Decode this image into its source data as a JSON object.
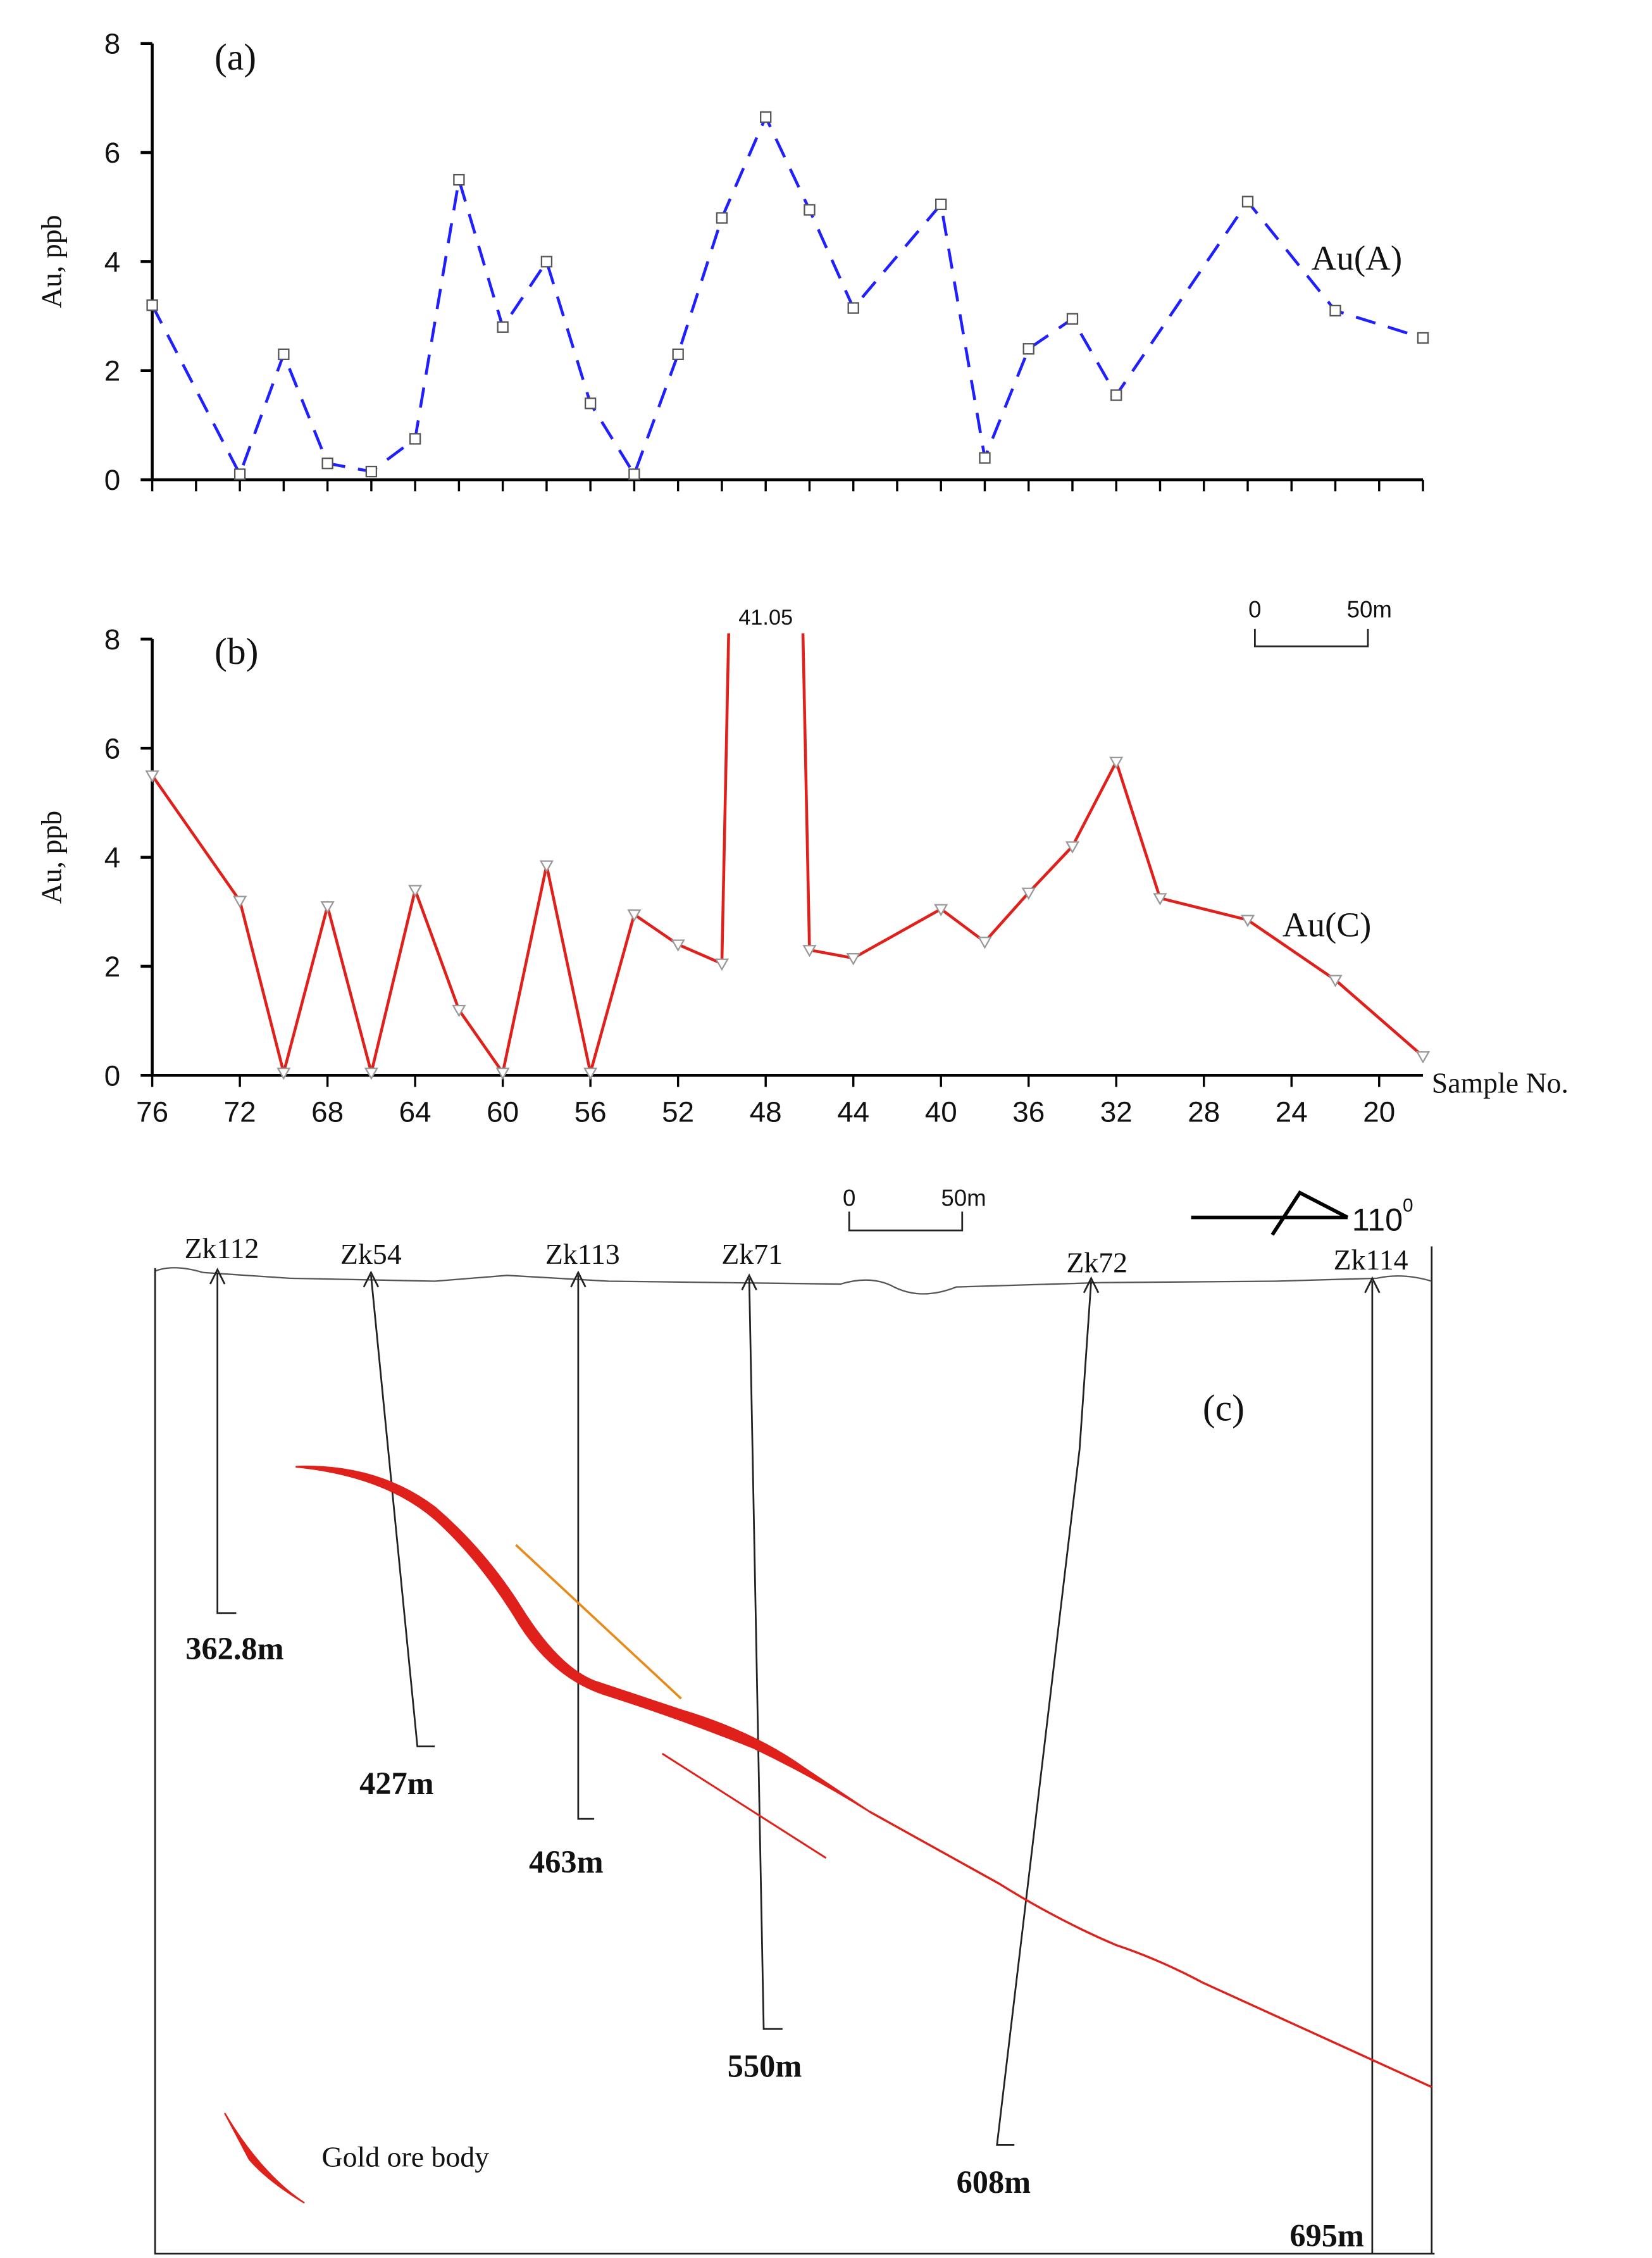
{
  "chart_data": [
    {
      "type": "line",
      "label": "(a)",
      "y_label": "Au, ppb",
      "x": [
        76,
        72,
        70,
        68,
        66,
        64,
        62,
        60,
        58,
        56,
        54,
        52,
        50,
        48,
        46,
        44,
        40,
        38,
        36,
        34,
        32,
        26,
        22,
        18
      ],
      "xlim": [
        76,
        18
      ],
      "ylim": [
        0,
        8
      ],
      "yticks": [
        0,
        2,
        4,
        6,
        8
      ],
      "xticks": [
        76,
        74,
        72,
        70,
        68,
        66,
        64,
        62,
        60,
        58,
        56,
        54,
        52,
        50,
        48,
        46,
        44,
        42,
        40,
        38,
        36,
        34,
        32,
        30,
        28,
        26,
        24,
        22,
        20,
        18
      ],
      "xtick_labels": false,
      "series": [
        {
          "name": "Au(A)",
          "color": "#1f1fff",
          "dashed": true,
          "marker": "square",
          "values": [
            3.2,
            0.1,
            2.3,
            0.3,
            0.15,
            0.75,
            5.5,
            2.8,
            4.0,
            1.4,
            0.1,
            2.3,
            4.8,
            6.65,
            4.95,
            3.15,
            5.05,
            0.4,
            2.4,
            2.95,
            1.55,
            5.1,
            3.1,
            2.6
          ]
        }
      ]
    },
    {
      "type": "line",
      "label": "(b)",
      "y_label": "Au, ppb",
      "x_label": "Sample No.",
      "x": [
        76,
        72,
        70,
        68,
        66,
        64,
        62,
        60,
        58,
        56,
        54,
        52,
        50,
        48,
        46,
        44,
        40,
        38,
        36,
        34,
        32,
        30,
        26,
        22,
        18
      ],
      "xlim": [
        76,
        18
      ],
      "ylim": [
        0,
        8
      ],
      "yticks": [
        0,
        2,
        4,
        6,
        8
      ],
      "xticks": [
        76,
        72,
        68,
        64,
        60,
        56,
        52,
        48,
        44,
        40,
        36,
        32,
        28,
        24,
        20
      ],
      "xtick_labels": true,
      "scale_bar": [
        "0",
        "50m"
      ],
      "series": [
        {
          "name": "Au(C)",
          "color": "#e0201b",
          "dashed": false,
          "marker": "triangle",
          "values": [
            5.5,
            3.2,
            0.05,
            3.1,
            0.05,
            3.4,
            1.2,
            0.05,
            3.85,
            0.05,
            2.95,
            2.4,
            2.05,
            41.05,
            2.3,
            2.15,
            3.05,
            2.45,
            3.35,
            4.2,
            5.75,
            3.25,
            2.85,
            1.75,
            0.35
          ],
          "value_labels": [
            null,
            null,
            null,
            null,
            null,
            null,
            null,
            null,
            null,
            null,
            null,
            null,
            null,
            "41.05",
            null,
            null,
            null,
            null,
            null,
            null,
            null,
            null,
            null,
            null,
            null
          ]
        }
      ]
    }
  ],
  "cross_section": {
    "label": "(c)",
    "scale_bar": [
      "0",
      "50m"
    ],
    "direction": "110",
    "direction_sup": "0",
    "boreholes": [
      {
        "name": "Zk112",
        "depth": "362.8m"
      },
      {
        "name": "Zk54",
        "depth": "427m"
      },
      {
        "name": "Zk113",
        "depth": "463m"
      },
      {
        "name": "Zk71",
        "depth": "550m"
      },
      {
        "name": "Zk72",
        "depth": "608m"
      },
      {
        "name": "Zk114",
        "depth": "695m"
      }
    ],
    "legend": "Gold ore body"
  }
}
